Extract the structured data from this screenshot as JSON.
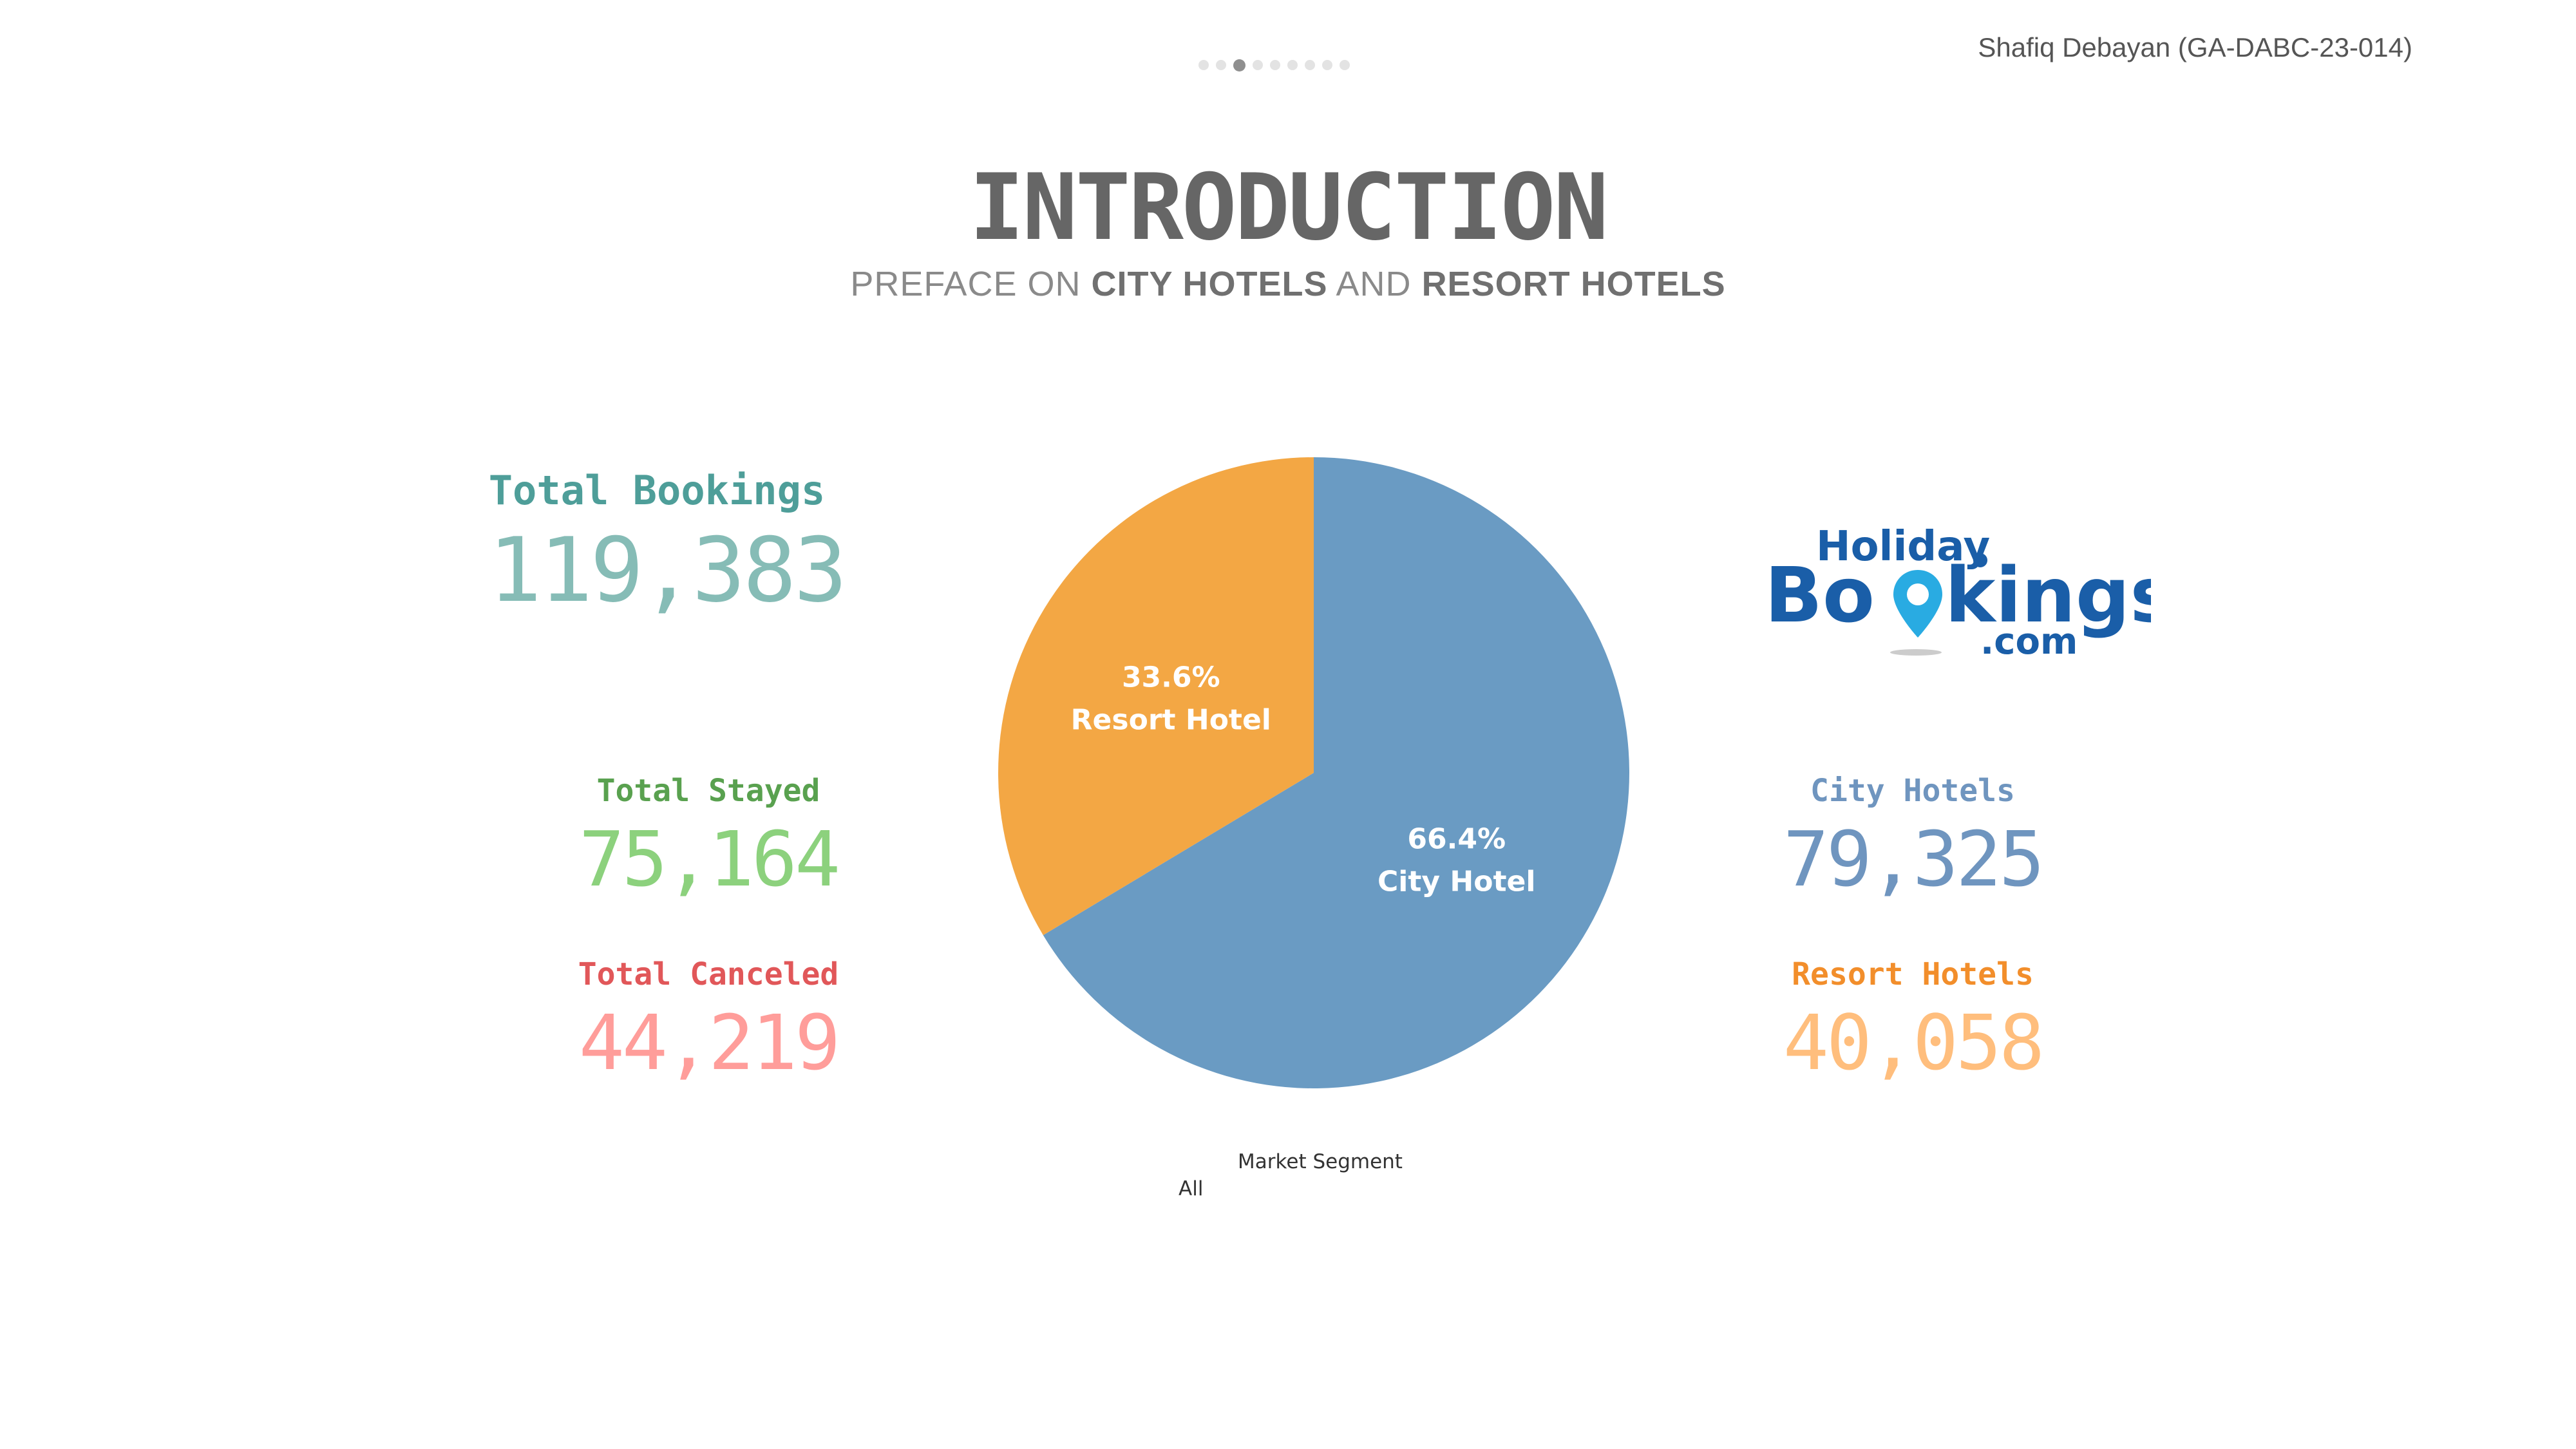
{
  "page_indicator": {
    "count": 9,
    "active_index": 2
  },
  "author": "Shafiq Debayan (GA-DABC-23-014)",
  "header": {
    "title": "INTRODUCTION",
    "subtitle_parts": [
      "PREFACE ON ",
      "CITY HOTELS",
      " AND ",
      "RESORT HOTELS"
    ]
  },
  "kpis": {
    "total_bookings": {
      "label": "Total Bookings",
      "value": "119,383",
      "label_color": "#4e9e99",
      "value_color": "#86bcb6"
    },
    "total_stayed": {
      "label": "Total Stayed",
      "value": "75,164",
      "label_color": "#59a14f",
      "value_color": "#8cd17d"
    },
    "total_canceled": {
      "label": "Total Canceled",
      "value": "44,219",
      "label_color": "#e15759",
      "value_color": "#ff9d9a"
    },
    "city_hotels": {
      "label": "City Hotels",
      "value": "79,325",
      "label_color": "#6f95bf",
      "value_color": "#6f95bf"
    },
    "resort_hotels": {
      "label": "Resort Hotels",
      "value": "40,058",
      "label_color": "#f28e2b",
      "value_color": "#ffbe7d"
    }
  },
  "logo": {
    "line1": "Holiday",
    "line2a": "Bo",
    "line2b": "kings",
    "line3": ".com",
    "primary_color": "#1a5ea8",
    "accent_color": "#29abe2"
  },
  "legend": {
    "title": "Market Segment",
    "value": "All"
  },
  "chart_data": {
    "type": "pie",
    "slices": [
      {
        "name": "City Hotel",
        "value": 66.4,
        "label_pct": "66.4%",
        "color": "#6a9bc3"
      },
      {
        "name": "Resort Hotel",
        "value": 33.6,
        "label_pct": "33.6%",
        "color": "#f3a744"
      }
    ],
    "start_angle_deg": 0,
    "direction": "clockwise"
  }
}
